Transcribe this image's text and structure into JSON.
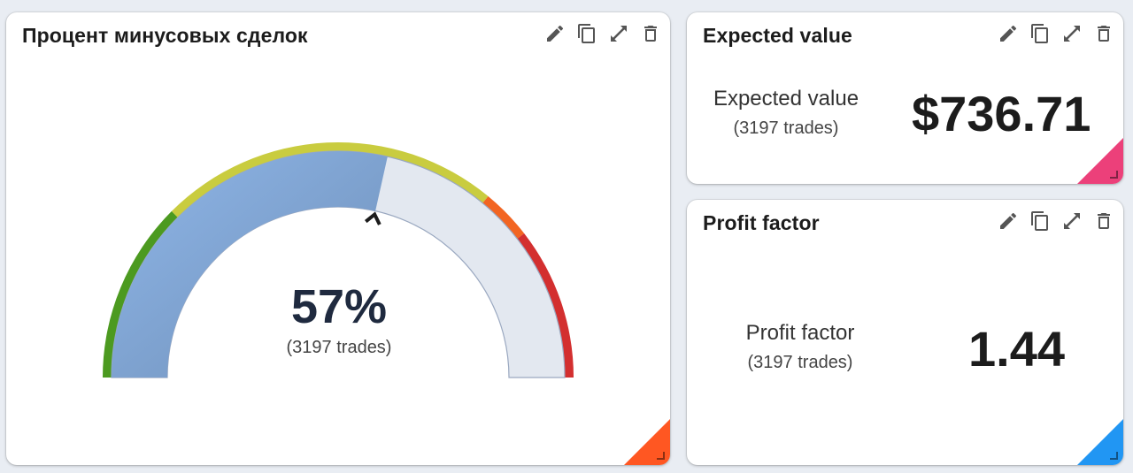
{
  "gauge_card": {
    "title": "Процент минусовых сделок",
    "value_text": "57%",
    "value": 57,
    "subtitle": "(3197 trades)",
    "accent": "#ff5722"
  },
  "ev_card": {
    "title": "Expected value",
    "label": "Expected value",
    "subtitle": "(3197 trades)",
    "value": "$736.71",
    "accent": "#ec407a"
  },
  "pf_card": {
    "title": "Profit factor",
    "label": "Profit factor",
    "subtitle": "(3197 trades)",
    "value": "1.44",
    "accent": "#2196f3"
  },
  "toolbar_icons": [
    "edit-icon",
    "copy-icon",
    "fullscreen-icon",
    "delete-icon"
  ],
  "gauge_bands_colors": [
    "#4c9a20",
    "#c9cc3f",
    "#f26522",
    "#d32f2f"
  ]
}
